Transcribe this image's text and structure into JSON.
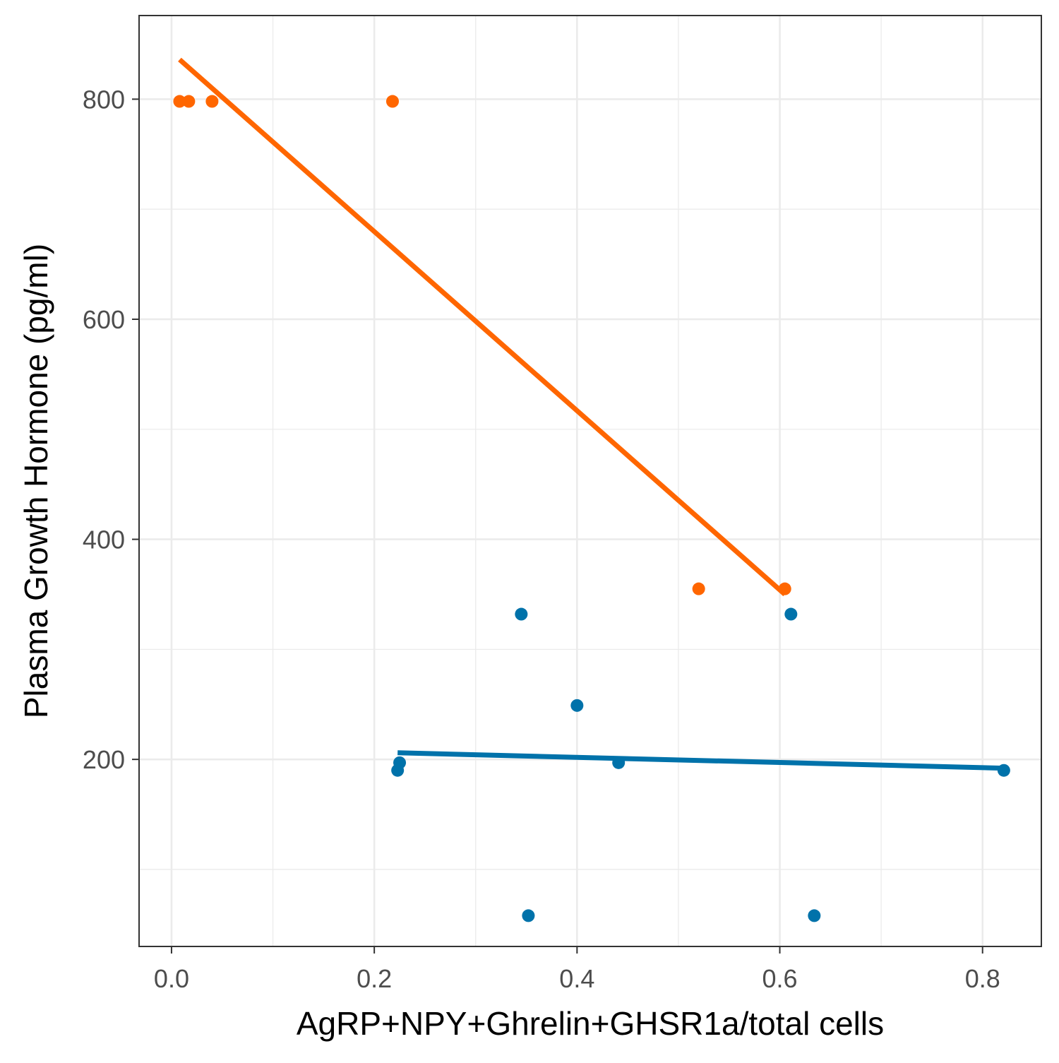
{
  "chart_data": {
    "type": "scatter",
    "title": "",
    "xlabel": "AgRP+NPY+Ghrelin+GHSR1a/total cells",
    "ylabel": "Plasma Growth Hormone (pg/ml)",
    "xlim": [
      -0.032,
      0.858
    ],
    "ylim": [
      30,
      876
    ],
    "x_ticks": [
      {
        "value": 0.0,
        "label": "0.0"
      },
      {
        "value": 0.2,
        "label": "0.2"
      },
      {
        "value": 0.4,
        "label": "0.4"
      },
      {
        "value": 0.6,
        "label": "0.6"
      },
      {
        "value": 0.8,
        "label": "0.8"
      }
    ],
    "y_ticks": [
      {
        "value": 200,
        "label": "200"
      },
      {
        "value": 400,
        "label": "400"
      },
      {
        "value": 600,
        "label": "600"
      },
      {
        "value": 800,
        "label": "800"
      }
    ],
    "x_minor": [
      0.1,
      0.3,
      0.5,
      0.7
    ],
    "y_minor": [
      100,
      300,
      500,
      700
    ],
    "grid": true,
    "legend": "none",
    "series": [
      {
        "color": "#ff6600",
        "points": [
          {
            "x": 0.008,
            "y": 798
          },
          {
            "x": 0.017,
            "y": 798
          },
          {
            "x": 0.04,
            "y": 798
          },
          {
            "x": 0.218,
            "y": 798
          },
          {
            "x": 0.52,
            "y": 355
          },
          {
            "x": 0.605,
            "y": 355
          }
        ],
        "fit": {
          "x": [
            0.008,
            0.605
          ],
          "y": [
            836,
            350
          ]
        }
      },
      {
        "color": "#0072aa",
        "points": [
          {
            "x": 0.223,
            "y": 190
          },
          {
            "x": 0.225,
            "y": 197
          },
          {
            "x": 0.345,
            "y": 332
          },
          {
            "x": 0.352,
            "y": 58
          },
          {
            "x": 0.4,
            "y": 249
          },
          {
            "x": 0.441,
            "y": 197
          },
          {
            "x": 0.611,
            "y": 332
          },
          {
            "x": 0.634,
            "y": 58
          },
          {
            "x": 0.821,
            "y": 190
          }
        ],
        "fit": {
          "x": [
            0.223,
            0.821
          ],
          "y": [
            206,
            192
          ]
        }
      }
    ]
  }
}
